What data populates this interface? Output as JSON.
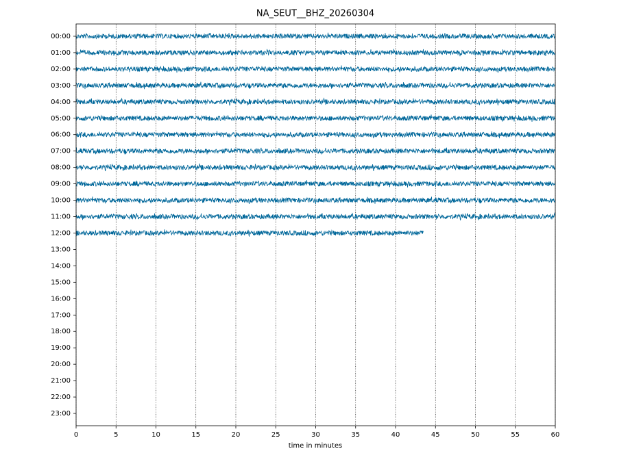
{
  "chart_data": {
    "type": "helicorder",
    "title": "NA_SEUT__BHZ_20260304",
    "x_label": "time in minutes",
    "categories": [
      "00:00",
      "01:00",
      "02:00",
      "03:00",
      "04:00",
      "05:00",
      "06:00",
      "07:00",
      "08:00",
      "09:00",
      "10:00",
      "11:00",
      "12:00",
      "13:00",
      "14:00",
      "15:00",
      "16:00",
      "17:00",
      "18:00",
      "19:00",
      "20:00",
      "21:00",
      "22:00",
      "23:00"
    ],
    "values": [
      60,
      60,
      60,
      60,
      60,
      60,
      60,
      60,
      60,
      60,
      60,
      60,
      43.5,
      null,
      null,
      null,
      null,
      null,
      null,
      null,
      null,
      null,
      null,
      null
    ],
    "color": "#00679a",
    "xlim": [
      0,
      60
    ],
    "xticks": [
      0,
      5,
      10,
      15,
      20,
      25,
      30,
      35,
      40,
      45,
      50,
      55,
      60
    ],
    "grid": true
  }
}
